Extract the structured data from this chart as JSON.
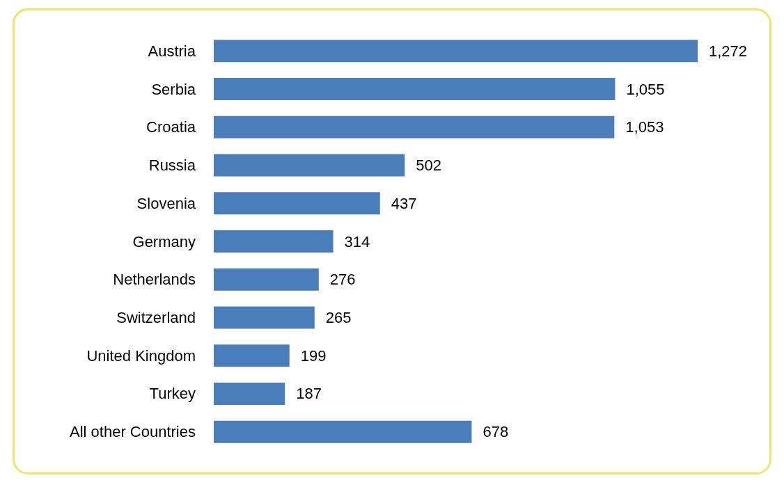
{
  "chart_data": {
    "type": "bar",
    "orientation": "horizontal",
    "categories": [
      "Austria",
      "Serbia",
      "Croatia",
      "Russia",
      "Slovenia",
      "Germany",
      "Netherlands",
      "Switzerland",
      "United Kingdom",
      "Turkey",
      "All other Countries"
    ],
    "values": [
      1272,
      1055,
      1053,
      502,
      437,
      314,
      276,
      265,
      199,
      187,
      678
    ],
    "value_labels": [
      "1,272",
      "1,055",
      "1,053",
      "502",
      "437",
      "314",
      "276",
      "265",
      "199",
      "187",
      "678"
    ],
    "color": "#4a7ebb"
  }
}
